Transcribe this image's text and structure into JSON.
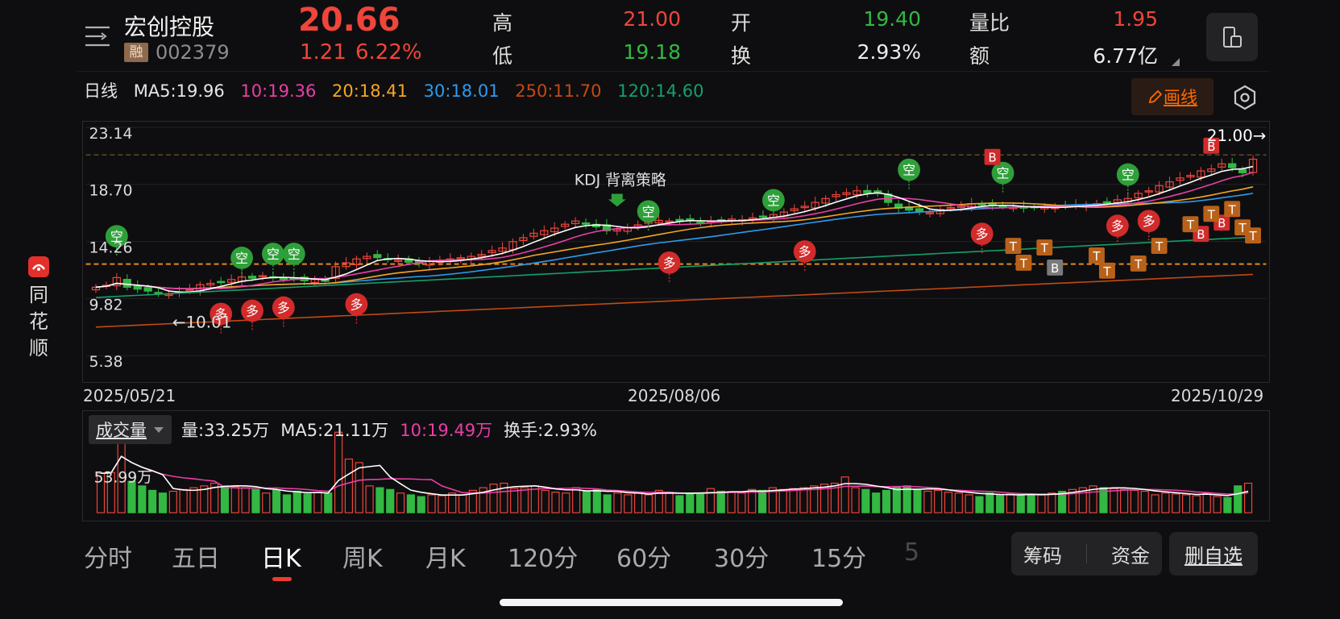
{
  "brand": {
    "name": "同花顺",
    "logo_icon": "ths-logo-icon"
  },
  "header": {
    "stock_name": "宏创控股",
    "badge": "融",
    "stock_code": "002379",
    "price": "20.66",
    "change": "1.21",
    "change_pct": "6.22%",
    "stats": [
      {
        "label": "高",
        "value": "21.00",
        "color": "red"
      },
      {
        "label": "低",
        "value": "19.18",
        "color": "green"
      },
      {
        "label": "开",
        "value": "19.40",
        "color": "green"
      },
      {
        "label": "换",
        "value": "2.93%",
        "color": "white"
      },
      {
        "label": "量比",
        "value": "1.95",
        "color": "red"
      },
      {
        "label": "额",
        "value": "6.77亿",
        "color": "white"
      }
    ]
  },
  "ma_legend": {
    "period": "日线",
    "ma5": "MA5:19.96",
    "ma10": "10:19.36",
    "ma20": "20:18.41",
    "ma30": "30:18.01",
    "ma250": "250:11.70",
    "ma120": "120:14.60"
  },
  "draw_button": "画线",
  "colors": {
    "up": "#f0453a",
    "down": "#33b843",
    "ma5": "#ffffff",
    "ma10": "#e93fa5",
    "ma20": "#f5a623",
    "ma30": "#2d9cf0",
    "ma120": "#14a06a",
    "ma250": "#c24a12",
    "accent": "#ff6a00"
  },
  "chart_data": {
    "type": "candlestick",
    "y_axis_labels": [
      "23.14",
      "18.70",
      "14.26",
      "9.82",
      "5.38"
    ],
    "ylim": [
      5.38,
      23.14
    ],
    "x_labels": [
      "2025/05/21",
      "2025/08/06",
      "2025/10/29"
    ],
    "annotations": {
      "high_marker": "21.00→",
      "low_marker": "←10.01",
      "strategy_label": "KDJ 背离策略",
      "signals": [
        "空",
        "多",
        "B",
        "T"
      ]
    },
    "close": [
      10.7,
      10.85,
      11.45,
      10.7,
      10.55,
      10.4,
      10.2,
      10.15,
      10.35,
      10.5,
      10.9,
      11.0,
      11.1,
      11.3,
      11.5,
      11.4,
      11.6,
      11.5,
      11.3,
      11.4,
      11.2,
      11.3,
      11.25,
      12.3,
      12.6,
      12.9,
      13.1,
      13.0,
      12.9,
      12.8,
      12.65,
      12.55,
      12.7,
      12.75,
      12.9,
      13.0,
      13.1,
      13.25,
      13.55,
      13.75,
      14.25,
      14.55,
      14.9,
      15.1,
      15.3,
      15.6,
      15.85,
      15.6,
      15.4,
      15.1,
      15.2,
      15.35,
      15.55,
      15.8,
      15.9,
      15.85,
      15.95,
      15.9,
      15.75,
      15.8,
      15.9,
      16.0,
      15.95,
      16.1,
      16.2,
      16.35,
      16.55,
      16.8,
      17.0,
      17.3,
      17.6,
      17.9,
      18.05,
      18.2,
      18.05,
      18.0,
      17.3,
      16.85,
      16.7,
      16.6,
      16.5,
      16.75,
      16.9,
      17.0,
      17.2,
      17.1,
      17.05,
      17.0,
      16.9,
      16.85,
      16.9,
      16.95,
      16.9,
      17.0,
      17.1,
      17.15,
      17.2,
      17.3,
      17.5,
      17.6,
      18.0,
      18.2,
      18.6,
      18.9,
      19.2,
      19.4,
      19.75,
      19.9,
      20.3,
      20.0,
      19.6,
      20.66
    ],
    "volume_label": "53.99万",
    "volume": [
      44,
      45,
      100,
      35,
      30,
      25,
      22,
      24,
      26,
      28,
      30,
      33,
      30,
      29,
      28,
      26,
      22,
      25,
      20,
      24,
      21,
      23,
      22,
      90,
      60,
      56,
      30,
      28,
      26,
      22,
      20,
      18,
      20,
      19,
      22,
      20,
      25,
      28,
      32,
      33,
      27,
      28,
      30,
      25,
      23,
      22,
      28,
      24,
      26,
      20,
      22,
      20,
      22,
      20,
      25,
      23,
      19,
      22,
      21,
      27,
      24,
      23,
      22,
      26,
      25,
      28,
      26,
      27,
      28,
      30,
      32,
      33,
      40,
      28,
      26,
      22,
      25,
      28,
      30,
      26,
      24,
      25,
      23,
      22,
      20,
      18,
      22,
      20,
      21,
      19,
      20,
      21,
      22,
      24,
      26,
      28,
      30,
      28,
      27,
      26,
      25,
      24,
      20,
      22,
      21,
      20,
      19,
      22,
      18,
      17,
      30,
      33
    ]
  },
  "volume_legend": {
    "selector": "成交量",
    "vol": "量:33.25万",
    "ma5": "MA5:21.11万",
    "ma10": "10:19.49万",
    "turnover": "换手:2.93%"
  },
  "period_tabs": [
    "分时",
    "五日",
    "日K",
    "周K",
    "月K",
    "120分",
    "60分",
    "30分",
    "15分",
    "5"
  ],
  "active_tab": "日K",
  "bottom_actions": {
    "chips": "筹码",
    "funds": "资金",
    "remove_watch": "删自选"
  }
}
